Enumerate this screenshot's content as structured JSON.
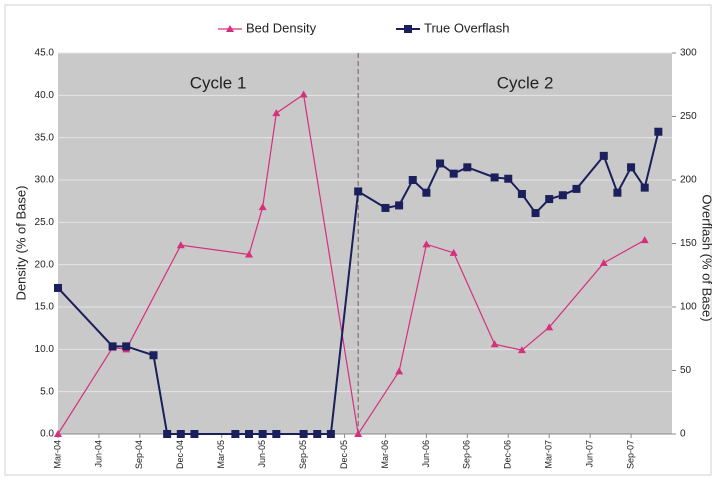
{
  "chart_data": {
    "type": "line",
    "legend": "top",
    "grid": true,
    "ylabel": "Density (% of Base)",
    "y2label": "Overflash (% of Base)",
    "annotations": [
      "Cycle 1",
      "Cycle 2"
    ],
    "divider": "2006-01",
    "xlim": [
      "2004-03",
      "2007-12"
    ],
    "xticks": [
      {
        "value": "2004-03",
        "label": "Mar-04"
      },
      {
        "value": "2004-06",
        "label": "Jun-04"
      },
      {
        "value": "2004-09",
        "label": "Sep-04"
      },
      {
        "value": "2004-12",
        "label": "Dec-04"
      },
      {
        "value": "2005-03",
        "label": "Mar-05"
      },
      {
        "value": "2005-06",
        "label": "Jun-05"
      },
      {
        "value": "2005-09",
        "label": "Sep-05"
      },
      {
        "value": "2005-12",
        "label": "Dec-05"
      },
      {
        "value": "2006-03",
        "label": "Mar-06"
      },
      {
        "value": "2006-06",
        "label": "Jun-06"
      },
      {
        "value": "2006-09",
        "label": "Sep-06"
      },
      {
        "value": "2006-12",
        "label": "Dec-06"
      },
      {
        "value": "2007-03",
        "label": "Mar-07"
      },
      {
        "value": "2007-06",
        "label": "Jun-07"
      },
      {
        "value": "2007-09",
        "label": "Sep-07"
      }
    ],
    "ylim": [
      0,
      45
    ],
    "yticks": [
      {
        "value": 0,
        "label": "0.0"
      },
      {
        "value": 5,
        "label": "5.0"
      },
      {
        "value": 10,
        "label": "10.0"
      },
      {
        "value": 15,
        "label": "15.0"
      },
      {
        "value": 20,
        "label": "20.0"
      },
      {
        "value": 25,
        "label": "25.0"
      },
      {
        "value": 30,
        "label": "30.0"
      },
      {
        "value": 35,
        "label": "35.0"
      },
      {
        "value": 40,
        "label": "40.0"
      },
      {
        "value": 45,
        "label": "45.0"
      }
    ],
    "y2lim": [
      0,
      300
    ],
    "y2ticks": [
      0,
      50,
      100,
      150,
      200,
      250,
      300
    ],
    "series": [
      {
        "name": "Bed Density",
        "color": "#d6307c",
        "marker": "triangle",
        "axis": "y",
        "x": [
          "2004-03",
          "2004-07",
          "2004-08",
          "2004-12",
          "2005-05",
          "2005-06",
          "2005-07",
          "2005-09",
          "2006-01",
          "2006-04",
          "2006-06",
          "2006-08",
          "2006-11",
          "2007-01",
          "2007-03",
          "2007-07",
          "2007-10"
        ],
        "values": [
          0,
          10.2,
          10.0,
          22.3,
          21.2,
          26.8,
          37.9,
          40.1,
          0,
          7.4,
          22.4,
          21.4,
          10.6,
          9.9,
          12.6,
          20.2,
          22.9
        ]
      },
      {
        "name": "True Overflash",
        "color": "#1b1f5c",
        "marker": "square",
        "axis": "y2",
        "x": [
          "2004-03",
          "2004-07",
          "2004-08",
          "2004-10",
          "2004-11",
          "2004-12",
          "2005-01",
          "2005-04",
          "2005-05",
          "2005-06",
          "2005-07",
          "2005-09",
          "2005-10",
          "2005-11",
          "2006-01",
          "2006-03",
          "2006-04",
          "2006-05",
          "2006-06",
          "2006-07",
          "2006-08",
          "2006-09",
          "2006-11",
          "2006-12",
          "2007-01",
          "2007-02",
          "2007-03",
          "2007-04",
          "2007-05",
          "2007-07",
          "2007-08",
          "2007-09",
          "2007-10",
          "2007-11"
        ],
        "values": [
          115,
          69,
          69,
          62,
          0,
          0,
          0,
          0,
          0,
          0,
          0,
          0,
          0,
          0,
          191,
          178,
          180,
          200,
          190,
          213,
          205,
          210,
          202,
          201,
          189,
          174,
          185,
          188,
          193,
          219,
          190,
          210,
          194,
          238
        ]
      }
    ]
  }
}
